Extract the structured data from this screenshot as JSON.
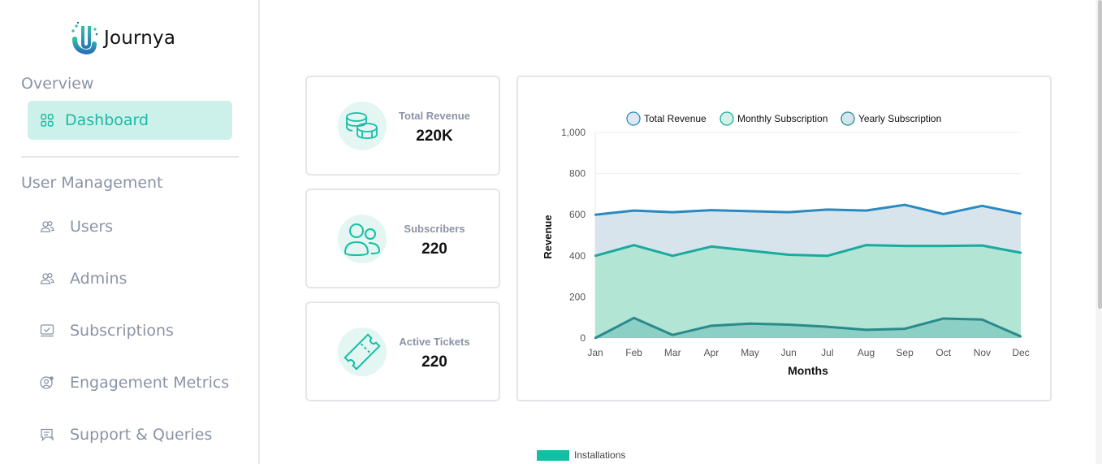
{
  "app": {
    "name": "Journya"
  },
  "sidebar": {
    "overview_title": "Overview",
    "dashboard_label": "Dashboard",
    "user_management_title": "User Management",
    "items": [
      {
        "label": "Users",
        "icon": "users-icon"
      },
      {
        "label": "Admins",
        "icon": "admins-icon"
      },
      {
        "label": "Subscriptions",
        "icon": "subscriptions-icon"
      },
      {
        "label": "Engagement Metrics",
        "icon": "engagement-icon"
      },
      {
        "label": "Support & Queries",
        "icon": "support-icon"
      }
    ]
  },
  "cards": [
    {
      "title": "Total Revenue",
      "value": "220K",
      "icon": "coins-icon"
    },
    {
      "title": "Subscribers",
      "value": "220",
      "icon": "subscribers-icon"
    },
    {
      "title": "Active Tickets",
      "value": "220",
      "icon": "ticket-icon"
    }
  ],
  "chart_data": {
    "type": "area",
    "categories": [
      "Jan",
      "Feb",
      "Mar",
      "Apr",
      "May",
      "Jun",
      "Jul",
      "Aug",
      "Sep",
      "Oct",
      "Nov",
      "Dec"
    ],
    "series": [
      {
        "name": "Total Revenue",
        "color": "#2a8ac0",
        "fill": "#d8e4ec",
        "values": [
          600,
          620,
          612,
          622,
          617,
          612,
          625,
          620,
          648,
          603,
          643,
          605
        ]
      },
      {
        "name": "Monthly Subscription",
        "color": "#1ba9a0",
        "fill": "#b2e5d3",
        "values": [
          400,
          452,
          400,
          445,
          425,
          405,
          400,
          452,
          448,
          448,
          450,
          415
        ]
      },
      {
        "name": "Yearly Subscription",
        "color": "#2a8a8c",
        "fill": "#8ccfc5",
        "values": [
          0,
          98,
          15,
          60,
          70,
          65,
          55,
          40,
          45,
          95,
          90,
          8
        ]
      }
    ],
    "xlabel": "Months",
    "ylabel": "Revenue",
    "ylim": [
      0,
      1000
    ],
    "yticks": [
      "0",
      "200",
      "400",
      "600",
      "800",
      "1,000"
    ],
    "legend_position": "top",
    "grid": true
  },
  "secondary_legend": {
    "label": "Installations",
    "color": "#13bfa3"
  }
}
